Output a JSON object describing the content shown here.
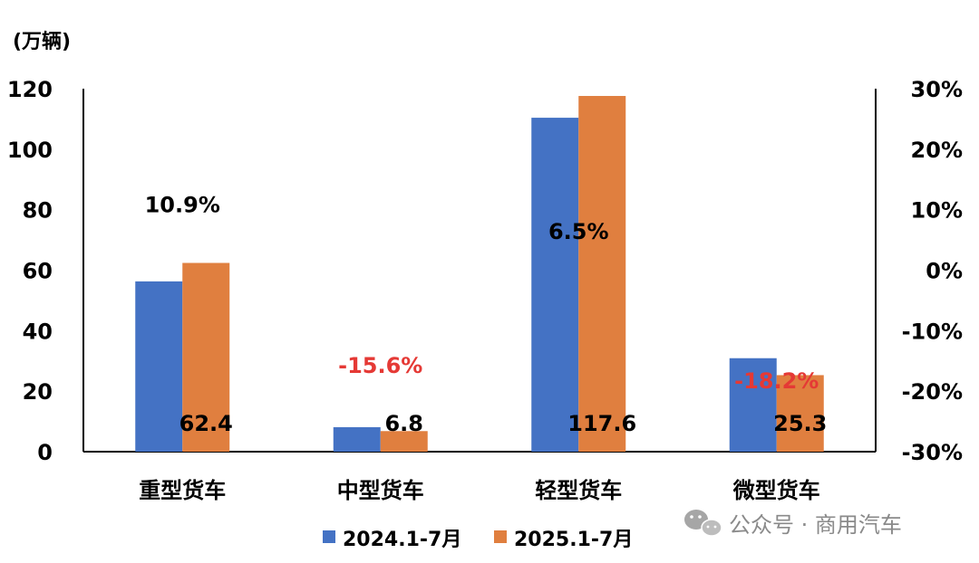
{
  "chart_data": {
    "type": "bar",
    "unit_label": "(万辆)",
    "categories": [
      "重型货车",
      "中型货车",
      "轻型货车",
      "微型货车"
    ],
    "series": [
      {
        "name": "2024.1-7月",
        "color": "#4472C4",
        "values": [
          56.3,
          8.1,
          110.4,
          30.9
        ]
      },
      {
        "name": "2025.1-7月",
        "color": "#E07F3F",
        "values": [
          62.4,
          6.8,
          117.6,
          25.3
        ]
      }
    ],
    "value_labels": [
      "62.4",
      "6.8",
      "117.6",
      "25.3"
    ],
    "growth": [
      {
        "label": "10.9%",
        "value": 10.9,
        "color": "#000000"
      },
      {
        "label": "-15.6%",
        "value": -15.6,
        "color": "#E53935"
      },
      {
        "label": "6.5%",
        "value": 6.5,
        "color": "#000000"
      },
      {
        "label": "-18.2%",
        "value": -18.2,
        "color": "#E53935"
      }
    ],
    "ylim": [
      0,
      120
    ],
    "yticks": [
      "0",
      "20",
      "40",
      "60",
      "80",
      "100",
      "120"
    ],
    "y2lim": [
      -30,
      30
    ],
    "y2ticks": [
      "-30%",
      "-20%",
      "-10%",
      "0%",
      "10%",
      "20%",
      "30%"
    ]
  },
  "watermark": {
    "text": "公众号 · 商用汽车",
    "icon": "wechat-icon"
  }
}
